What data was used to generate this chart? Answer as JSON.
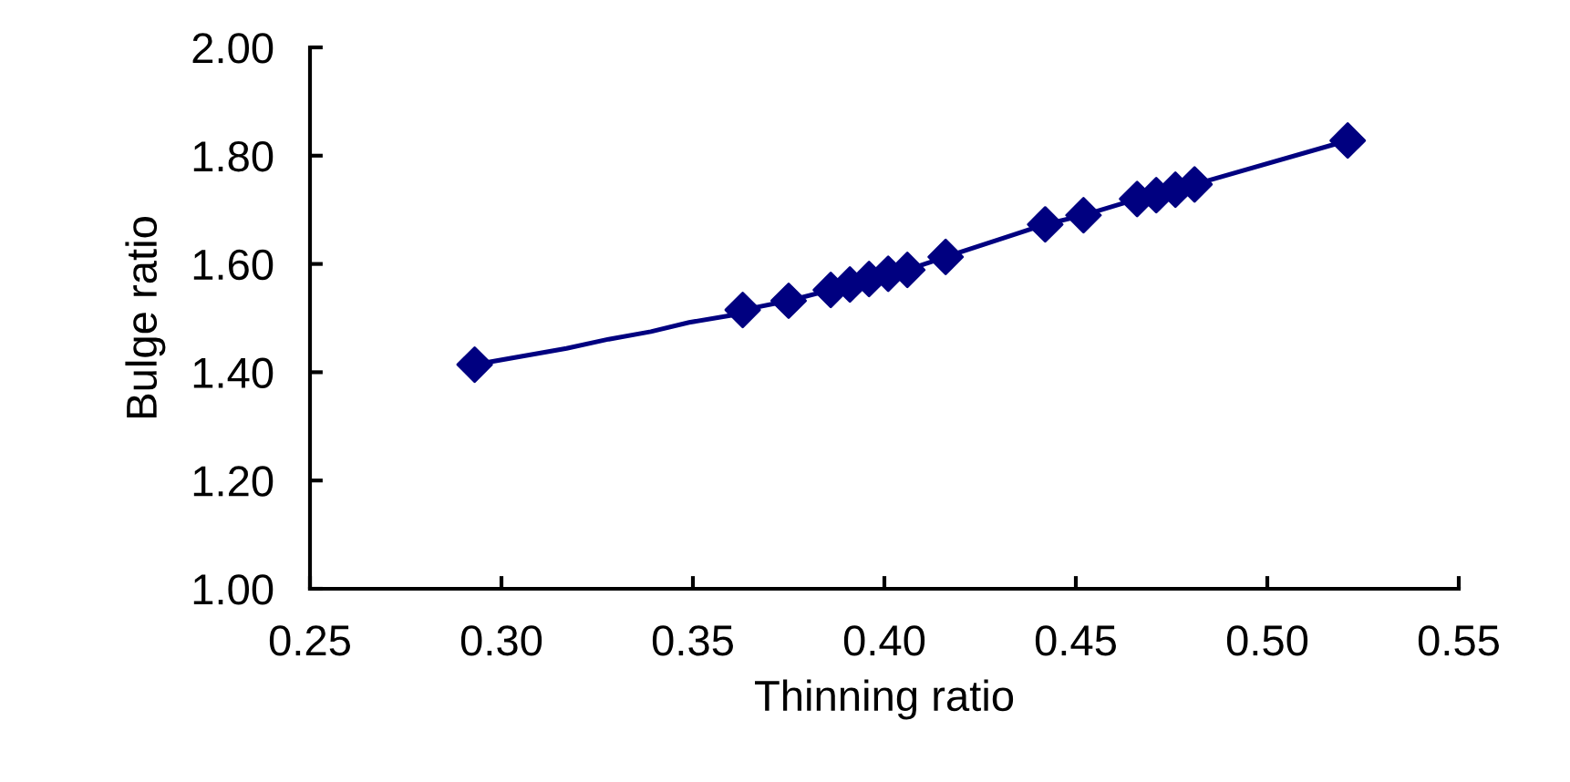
{
  "chart_data": {
    "type": "scatter",
    "xlabel": "Thinning ratio",
    "ylabel": "Bulge ratio",
    "xlim": [
      0.25,
      0.55
    ],
    "xticks": [
      {
        "value": 0.25,
        "label": "0.25"
      },
      {
        "value": 0.3,
        "label": "0.30"
      },
      {
        "value": 0.35,
        "label": "0.35"
      },
      {
        "value": 0.4,
        "label": "0.40"
      },
      {
        "value": 0.45,
        "label": "0.45"
      },
      {
        "value": 0.5,
        "label": "0.50"
      },
      {
        "value": 0.55,
        "label": "0.55"
      }
    ],
    "ylim": [
      1.0,
      2.0
    ],
    "yticks": [
      {
        "value": 1.0,
        "label": "1.00"
      },
      {
        "value": 1.2,
        "label": "1.20"
      },
      {
        "value": 1.4,
        "label": "1.40"
      },
      {
        "value": 1.6,
        "label": "1.60"
      },
      {
        "value": 1.8,
        "label": "1.80"
      },
      {
        "value": 2.0,
        "label": "2.00"
      }
    ],
    "grid": false,
    "legend": false,
    "series": [
      {
        "type": "line",
        "marker": "none",
        "line_style": "solid",
        "color": "#000080",
        "x": [
          0.293,
          0.317,
          0.328,
          0.339,
          0.349,
          0.36,
          0.363,
          0.375,
          0.386,
          0.391,
          0.396,
          0.401,
          0.406,
          0.416,
          0.442,
          0.452,
          0.466,
          0.471,
          0.476,
          0.481,
          0.521
        ],
        "values": [
          1.414,
          1.444,
          1.461,
          1.475,
          1.492,
          1.505,
          1.515,
          1.532,
          1.552,
          1.562,
          1.572,
          1.582,
          1.589,
          1.613,
          1.673,
          1.69,
          1.72,
          1.727,
          1.737,
          1.747,
          1.828
        ]
      },
      {
        "marker": "diamond",
        "color": "#000080",
        "x": [
          0.293,
          0.363,
          0.375,
          0.386,
          0.391,
          0.396,
          0.401,
          0.406,
          0.416,
          0.442,
          0.452,
          0.466,
          0.471,
          0.476,
          0.481,
          0.521
        ],
        "values": [
          1.414,
          1.515,
          1.532,
          1.552,
          1.562,
          1.572,
          1.582,
          1.589,
          1.613,
          1.673,
          1.69,
          1.72,
          1.727,
          1.737,
          1.747,
          1.828
        ]
      }
    ]
  }
}
